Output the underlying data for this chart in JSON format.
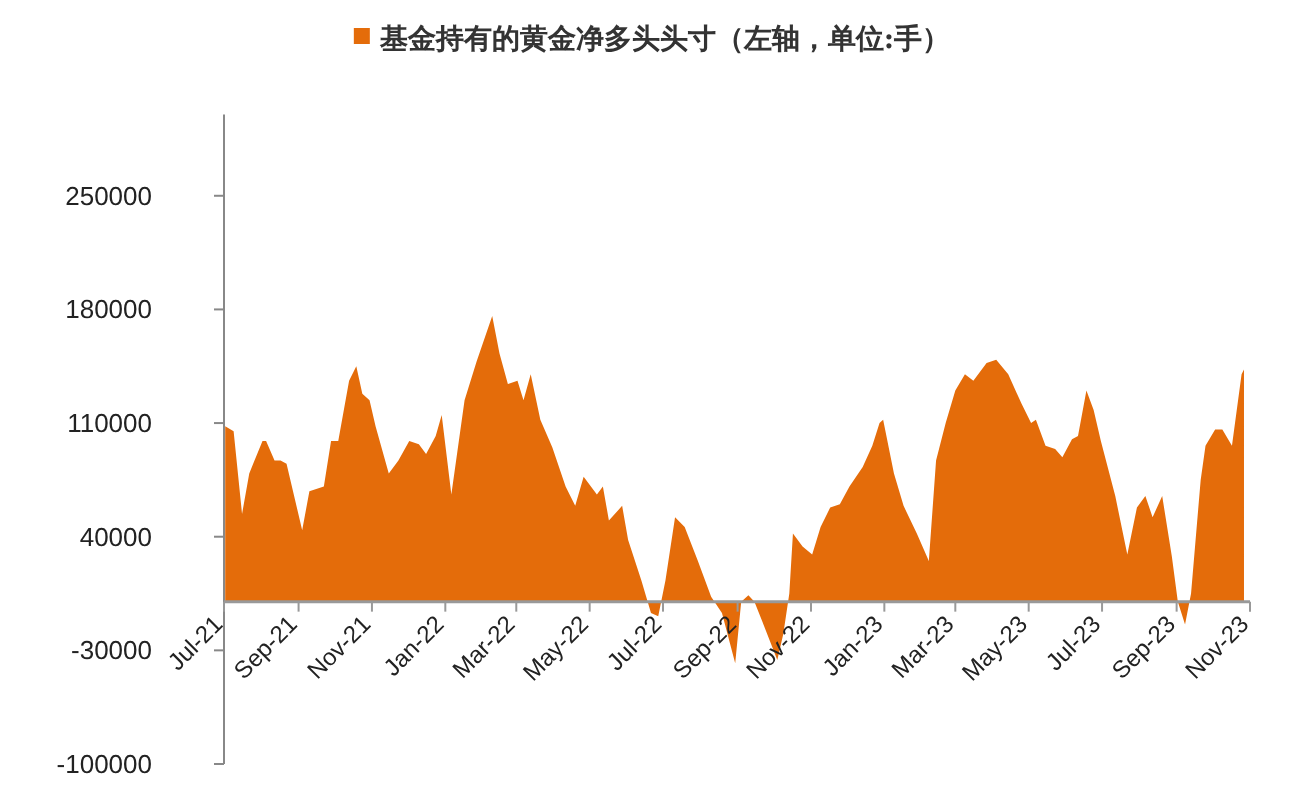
{
  "chart_data": {
    "type": "area",
    "legend": "top",
    "grid": false,
    "x": [
      "2021-07-02",
      "2021-07-09",
      "2021-07-16",
      "2021-07-22",
      "2021-08-02",
      "2021-08-05",
      "2021-08-12",
      "2021-08-17",
      "2021-08-22",
      "2021-09-04",
      "2021-09-10",
      "2021-09-22",
      "2021-09-28",
      "2021-10-04",
      "2021-10-13",
      "2021-10-19",
      "2021-10-24",
      "2021-10-30",
      "2021-11-04",
      "2021-11-15",
      "2021-11-23",
      "2021-12-02",
      "2021-12-10",
      "2021-12-16",
      "2021-12-24",
      "2021-12-29",
      "2022-01-06",
      "2022-01-17",
      "2022-01-27",
      "2022-02-09",
      "2022-02-15",
      "2022-02-22",
      "2022-03-02",
      "2022-03-07",
      "2022-03-13",
      "2022-03-21",
      "2022-03-31",
      "2022-04-11",
      "2022-04-19",
      "2022-04-26",
      "2022-05-07",
      "2022-05-12",
      "2022-05-17",
      "2022-05-28",
      "2022-06-02",
      "2022-06-13",
      "2022-06-21",
      "2022-06-27",
      "2022-07-03",
      "2022-07-11",
      "2022-07-19",
      "2022-07-30",
      "2022-08-10",
      "2022-08-19",
      "2022-08-30",
      "2022-09-04",
      "2022-09-10",
      "2022-09-15",
      "2022-09-23",
      "2022-10-04",
      "2022-10-09",
      "2022-10-14",
      "2022-10-17",
      "2022-10-25",
      "2022-11-02",
      "2022-11-09",
      "2022-11-17",
      "2022-11-25",
      "2022-12-03",
      "2022-12-14",
      "2022-12-22",
      "2022-12-28",
      "2022-12-31",
      "2023-01-09",
      "2023-01-17",
      "2023-01-28",
      "2023-02-07",
      "2023-02-13",
      "2023-02-21",
      "2023-03-01",
      "2023-03-09",
      "2023-03-16",
      "2023-03-27",
      "2023-04-04",
      "2023-04-14",
      "2023-04-25",
      "2023-05-03",
      "2023-05-07",
      "2023-05-15",
      "2023-05-23",
      "2023-05-29",
      "2023-06-06",
      "2023-06-11",
      "2023-06-18",
      "2023-06-24",
      "2023-06-30",
      "2023-07-12",
      "2023-07-22",
      "2023-07-30",
      "2023-08-06",
      "2023-08-12",
      "2023-08-20",
      "2023-08-28",
      "2023-09-02",
      "2023-09-08",
      "2023-09-13",
      "2023-09-21",
      "2023-09-25",
      "2023-10-03",
      "2023-10-09",
      "2023-10-17",
      "2023-10-25",
      "2023-10-27"
    ],
    "series": [
      {
        "name": "基金持有的黄金净多头头寸（左轴，单位:手）",
        "color": "#e46c0a",
        "values": [
          108000,
          105000,
          54000,
          79000,
          99000,
          99000,
          87000,
          87000,
          85000,
          44000,
          68000,
          71000,
          99000,
          99000,
          136000,
          145000,
          128000,
          124000,
          108000,
          79000,
          87000,
          99000,
          97000,
          91000,
          102000,
          115000,
          66000,
          124000,
          148000,
          176000,
          153000,
          134000,
          136000,
          124000,
          140000,
          112000,
          95000,
          71000,
          59000,
          77000,
          66000,
          71000,
          50000,
          59000,
          38000,
          13000,
          -7000,
          -9000,
          13000,
          52000,
          46000,
          25000,
          3000,
          -7000,
          -38000,
          0,
          4000,
          0,
          -15000,
          -36000,
          -20000,
          5000,
          42000,
          34000,
          29000,
          46000,
          58000,
          60000,
          71000,
          83000,
          96000,
          110000,
          112000,
          79000,
          59000,
          42000,
          25000,
          87000,
          110000,
          130000,
          140000,
          136000,
          147000,
          149000,
          140000,
          122000,
          110000,
          112000,
          96000,
          94000,
          89000,
          100000,
          102000,
          130000,
          118000,
          99000,
          65000,
          29000,
          58000,
          65000,
          52000,
          65000,
          28000,
          0,
          -14000,
          5000,
          75000,
          96000,
          106000,
          106000,
          96000,
          140000,
          143000
        ]
      }
    ],
    "xlim": [
      "2021-07-01",
      "2023-11-01"
    ],
    "xticks": [
      {
        "value": "2021-07-01",
        "label": "Jul-21"
      },
      {
        "value": "2021-09-01",
        "label": "Sep-21"
      },
      {
        "value": "2021-11-01",
        "label": "Nov-21"
      },
      {
        "value": "2022-01-01",
        "label": "Jan-22"
      },
      {
        "value": "2022-03-01",
        "label": "Mar-22"
      },
      {
        "value": "2022-05-01",
        "label": "May-22"
      },
      {
        "value": "2022-07-01",
        "label": "Jul-22"
      },
      {
        "value": "2022-09-01",
        "label": "Sep-22"
      },
      {
        "value": "2022-11-01",
        "label": "Nov-22"
      },
      {
        "value": "2023-01-01",
        "label": "Jan-23"
      },
      {
        "value": "2023-03-01",
        "label": "Mar-23"
      },
      {
        "value": "2023-05-01",
        "label": "May-23"
      },
      {
        "value": "2023-07-01",
        "label": "Jul-23"
      },
      {
        "value": "2023-09-01",
        "label": "Sep-23"
      },
      {
        "value": "2023-11-01",
        "label": "Nov-23"
      }
    ],
    "ylim": [
      -100000,
      300000
    ],
    "yticks": [
      -100000,
      -30000,
      40000,
      110000,
      180000,
      250000
    ]
  }
}
